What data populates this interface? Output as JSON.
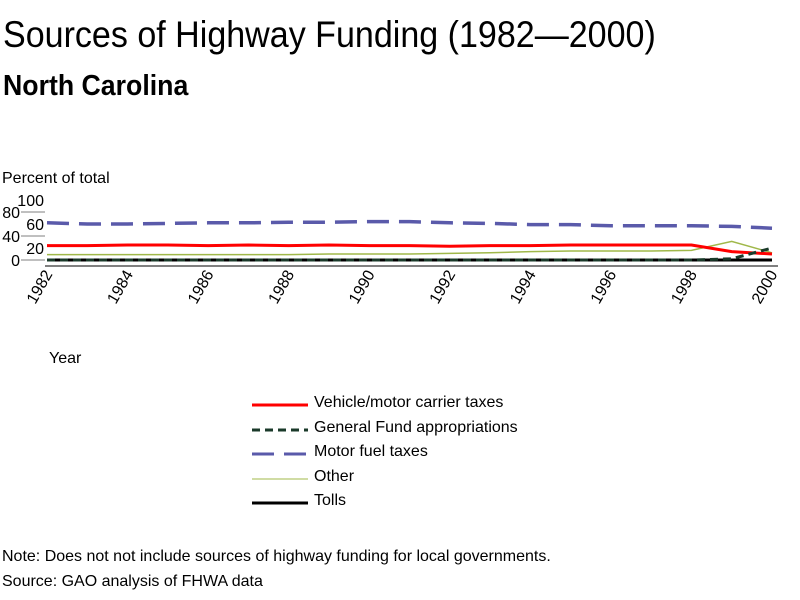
{
  "chart_data": {
    "type": "line",
    "title": "Sources of Highway Funding (1982—2000)",
    "subtitle": "North Carolina",
    "ylabel": "Percent of total",
    "xlabel": "Year",
    "ylim": [
      0,
      100
    ],
    "y_ticks": [
      "0",
      "20",
      "40",
      "60",
      "80",
      "100"
    ],
    "x_ticks": [
      "1982",
      "1984",
      "1986",
      "1988",
      "1990",
      "1992",
      "1994",
      "1996",
      "1998",
      "2000"
    ],
    "x": [
      1982,
      1983,
      1984,
      1985,
      1986,
      1987,
      1988,
      1989,
      1990,
      1991,
      1992,
      1993,
      1994,
      1995,
      1996,
      1997,
      1998,
      1999,
      2000
    ],
    "legend_position": "bottom",
    "series": [
      {
        "name": "Vehicle/motor carrier taxes",
        "color": "#ff0000",
        "dash": "solid",
        "values": [
          24,
          24,
          25,
          25,
          24,
          25,
          24,
          25,
          24,
          24,
          23,
          24,
          24,
          25,
          25,
          25,
          25,
          14,
          10
        ]
      },
      {
        "name": "General Fund appropriations",
        "color": "#1a3a2a",
        "dash": "dashed",
        "values": [
          0,
          0,
          0,
          0,
          0,
          0,
          0,
          0,
          0,
          0,
          0,
          0,
          0,
          0,
          0,
          0,
          0,
          2,
          20
        ]
      },
      {
        "name": "Motor fuel taxes",
        "color": "#5a5aaa",
        "dash": "longdash",
        "values": [
          62,
          60,
          60,
          61,
          62,
          62,
          63,
          63,
          64,
          64,
          62,
          61,
          59,
          59,
          57,
          57,
          57,
          56,
          53
        ]
      },
      {
        "name": "Other",
        "color": "#a0b84a",
        "dash": "solid",
        "values": [
          9,
          9,
          9,
          9,
          9,
          9,
          9,
          10,
          10,
          10,
          11,
          12,
          14,
          15,
          15,
          15,
          16,
          31,
          12
        ]
      },
      {
        "name": "Tolls",
        "color": "#000000",
        "dash": "solid",
        "values": [
          0,
          0,
          0,
          0,
          0,
          0,
          0,
          0,
          0,
          0,
          0,
          0,
          0,
          0,
          0,
          0,
          0,
          0,
          0
        ]
      }
    ]
  },
  "note": "Note: Does not not include sources of highway funding for local governments.",
  "source": "Source: GAO analysis of FHWA data"
}
